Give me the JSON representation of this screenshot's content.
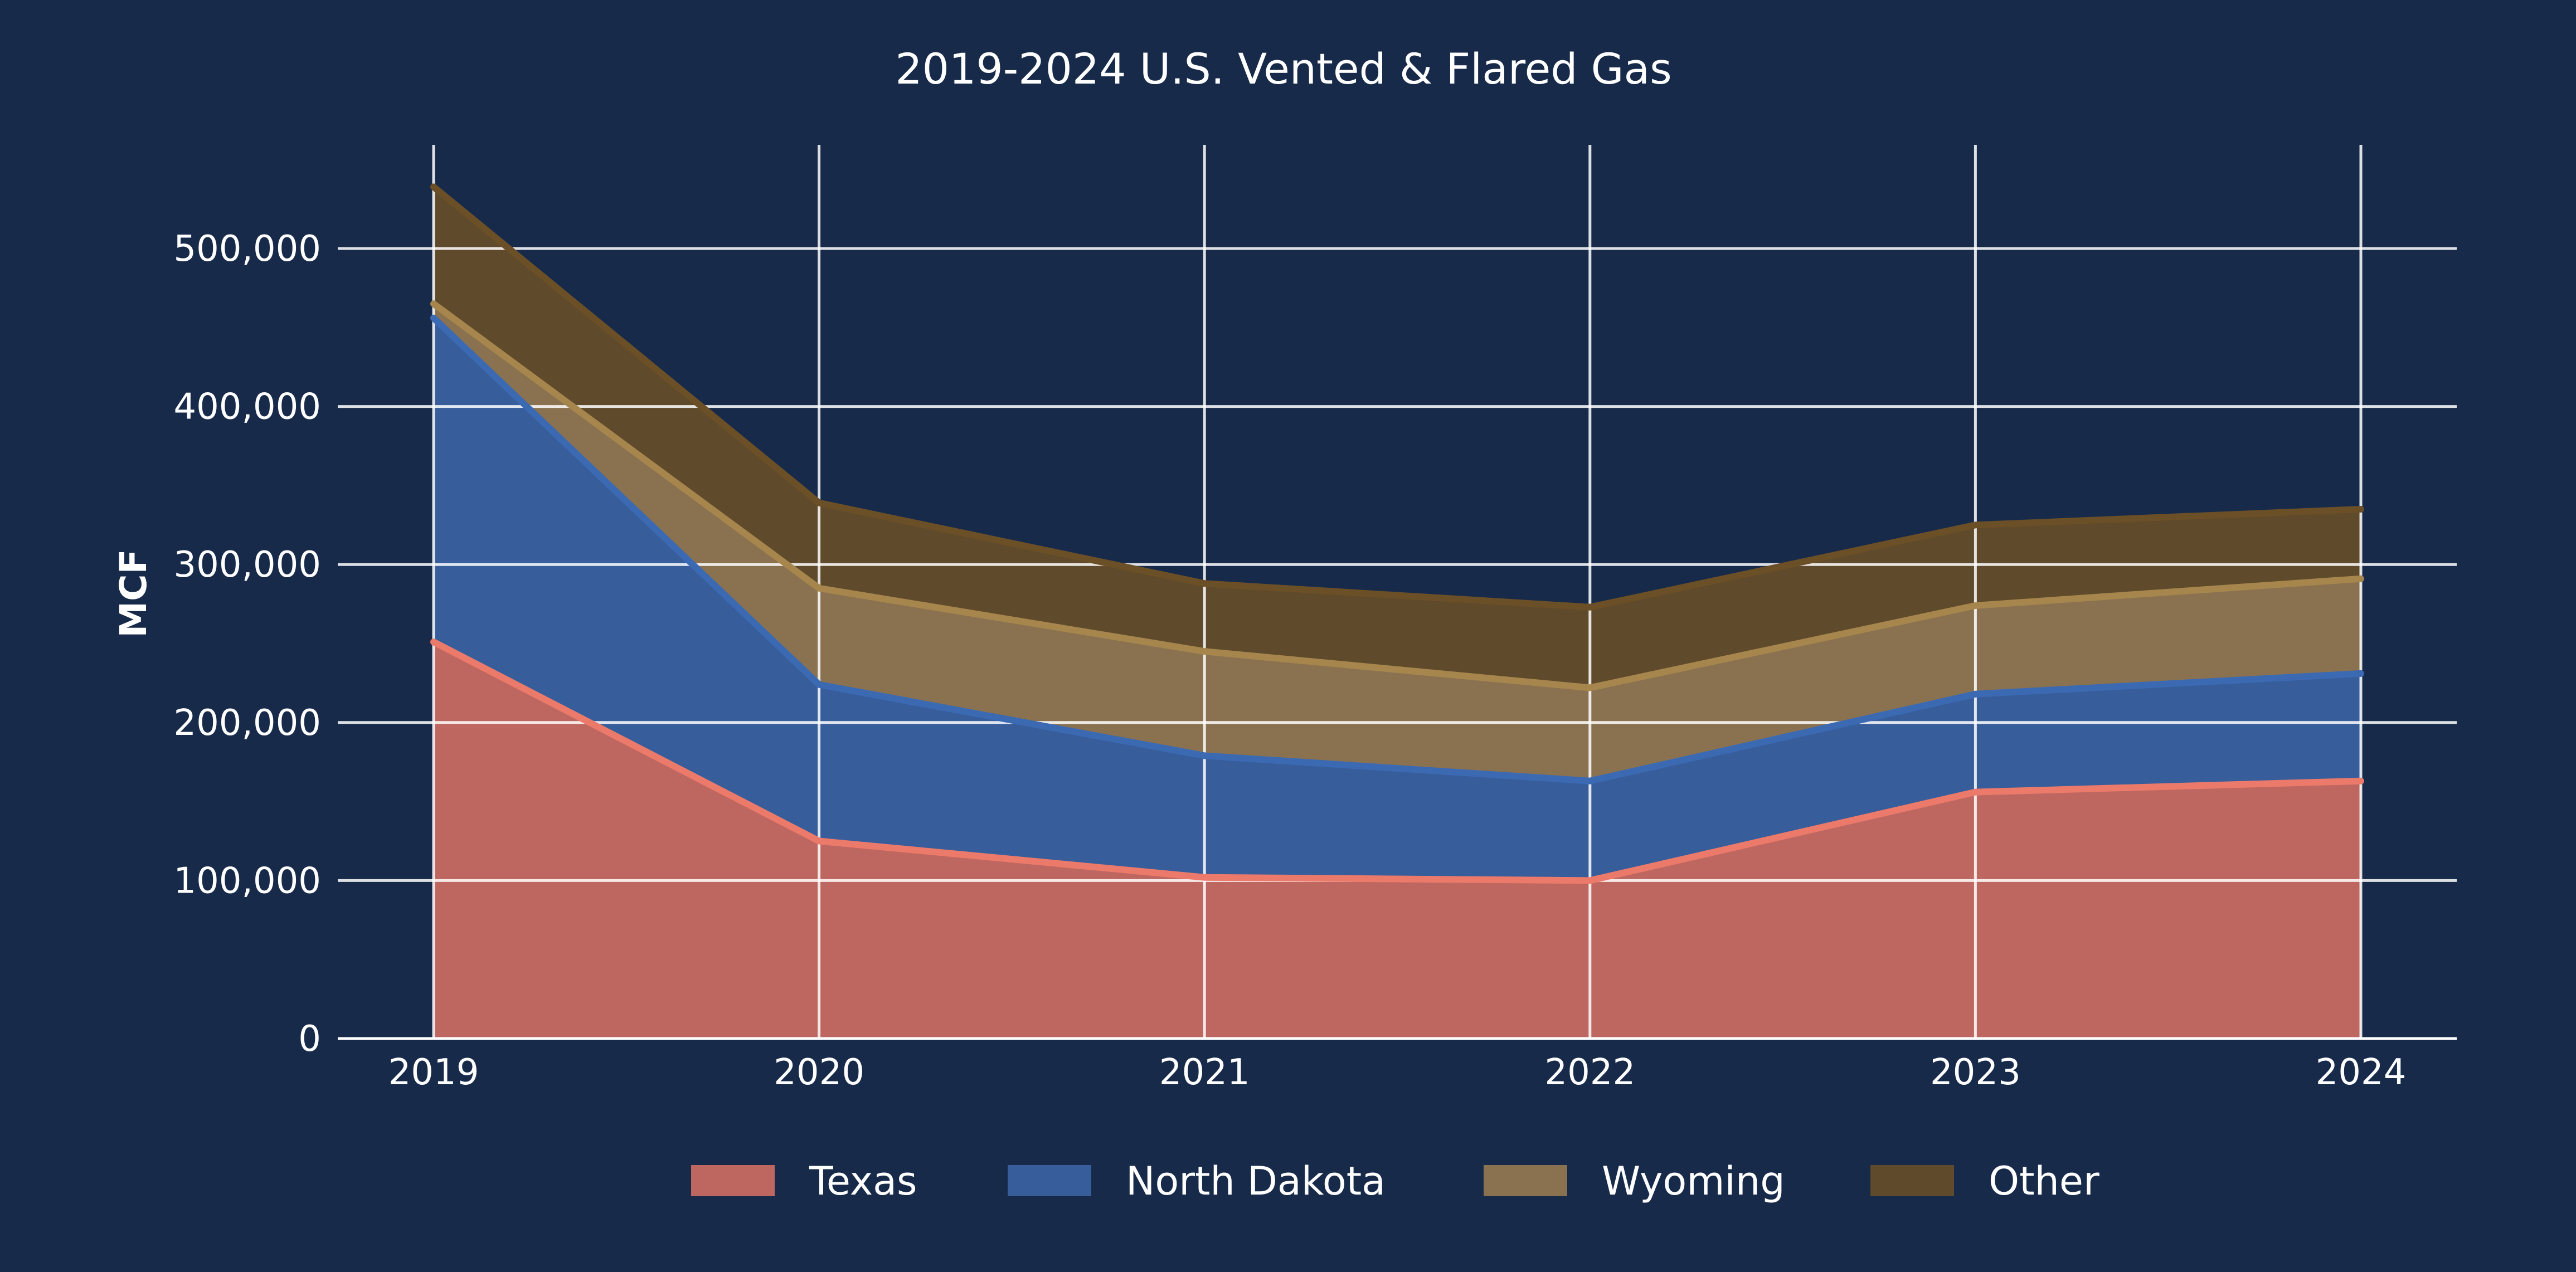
{
  "colors": {
    "background": "#172a4a",
    "grid": "#ffffff",
    "text": "#ffffff"
  },
  "chart_data": {
    "type": "area",
    "stacked": true,
    "title": "2019-2024 U.S. Vented & Flared Gas",
    "xlabel": "",
    "ylabel": "MCF",
    "x": [
      "2019",
      "2020",
      "2021",
      "2022",
      "2023",
      "2024"
    ],
    "ylim": [
      0,
      565000
    ],
    "yticks": [
      0,
      100000,
      200000,
      300000,
      400000,
      500000
    ],
    "ytick_labels": [
      "0",
      "100,000",
      "200,000",
      "300,000",
      "400,000",
      "500,000"
    ],
    "grid": true,
    "legend_position": "bottom",
    "series": [
      {
        "name": "Texas",
        "fill": "#bd6760",
        "line": "#ec7a6a",
        "values": [
          251000,
          125000,
          102000,
          100000,
          156000,
          163000
        ]
      },
      {
        "name": "North Dakota",
        "fill": "#375d9a",
        "line": "#3b6ab3",
        "values": [
          205000,
          99000,
          77000,
          63000,
          62000,
          68000
        ]
      },
      {
        "name": "Wyoming",
        "fill": "#8a7250",
        "line": "#a6864d",
        "values": [
          9000,
          61000,
          66000,
          59000,
          56000,
          60000
        ]
      },
      {
        "name": "Other",
        "fill": "#5f4a2b",
        "line": "#6b4f27",
        "values": [
          74000,
          54000,
          43000,
          51000,
          51000,
          44000
        ]
      }
    ]
  }
}
